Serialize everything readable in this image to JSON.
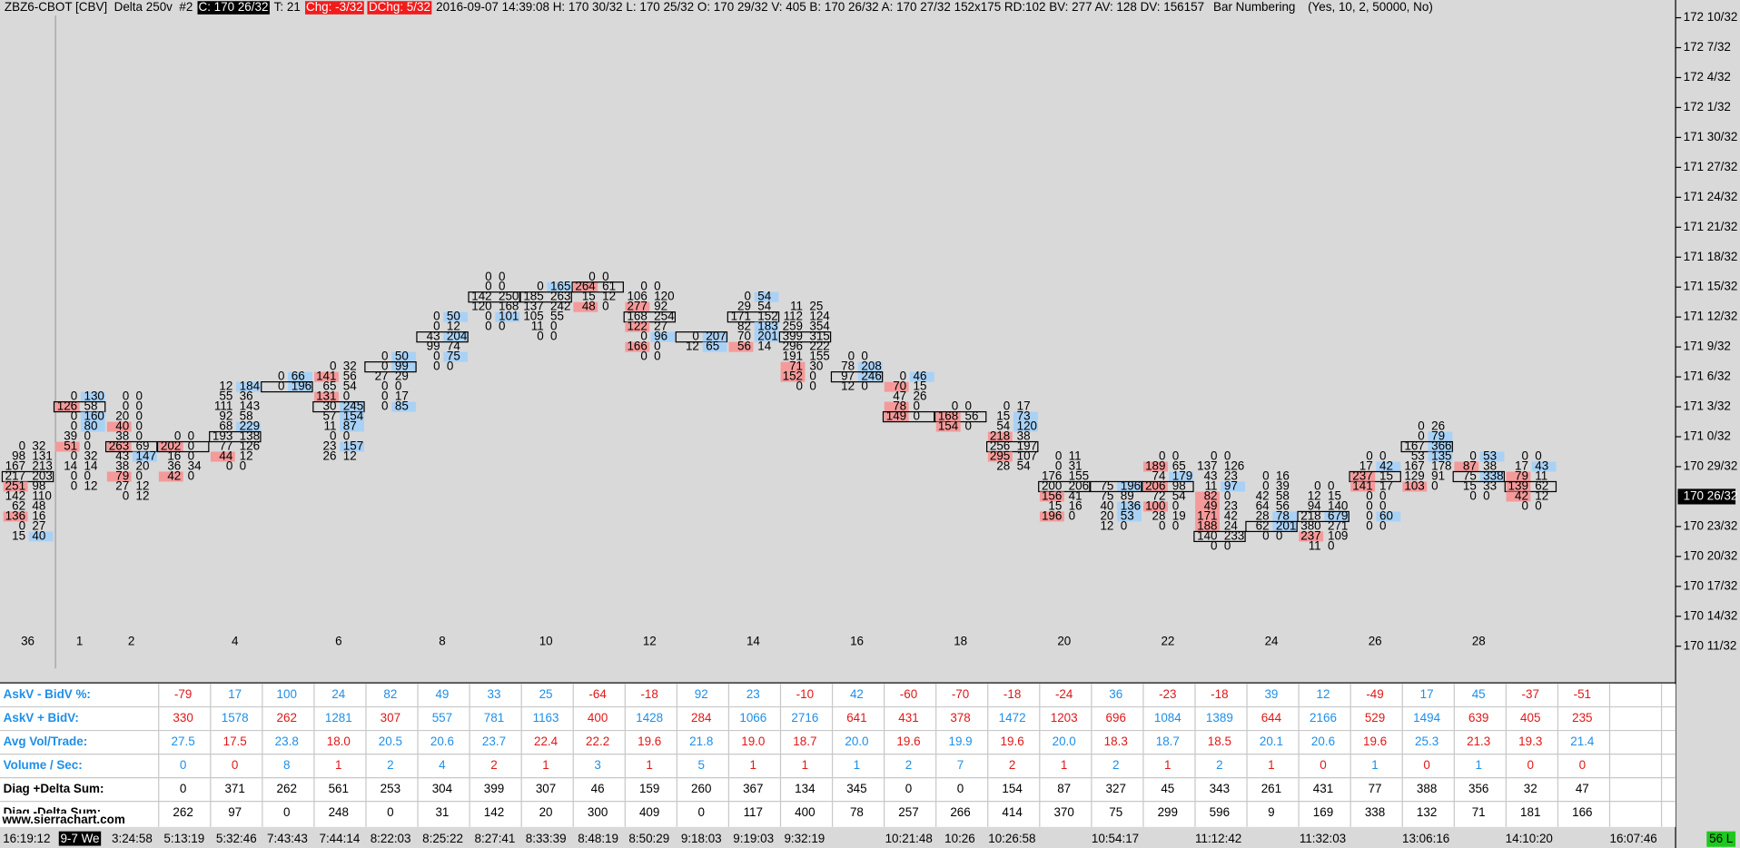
{
  "header": {
    "symbol": "ZBZ6-CBOT [CBV]  Delta 250v  #2",
    "close": "C: 170 26/32",
    "trades": "T: 21",
    "change": "Chg: -3/32",
    "dchange": "DChg: 5/32",
    "info": "2016-09-07 14:39:08 H: 170 30/32 L: 170 25/32 O: 170 29/32 V: 405 B: 170 26/32 A: 170 27/32 152x175 RD:102 BV: 277 AV: 128 DV: 156157",
    "study": "Bar Numbering",
    "study_params": "(Yes, 10, 2, 50000, No)"
  },
  "price_axis": {
    "top_32nds": 5514,
    "labels": [
      "172 10/32",
      "172 7/32",
      "172 4/32",
      "172 1/32",
      "171 30/32",
      "171 27/32",
      "171 24/32",
      "171 21/32",
      "171 18/32",
      "171 15/32",
      "171 12/32",
      "171 9/32",
      "171 6/32",
      "171 3/32",
      "171 0/32",
      "170 29/32",
      "170 23/32",
      "170 20/32",
      "170 17/32",
      "170 14/32",
      "170 11/32"
    ],
    "current": "170 26/32"
  },
  "footprint": [
    {
      "high": 5471,
      "bar_number": "36",
      "cells": [
        [
          "0",
          "32"
        ],
        [
          "98",
          "131"
        ],
        [
          "167",
          "213"
        ],
        [
          "217",
          "203"
        ],
        [
          "251",
          "98"
        ],
        [
          "142",
          "110"
        ],
        [
          "62",
          "48"
        ],
        [
          "136",
          "16"
        ],
        [
          "0",
          "27"
        ],
        [
          "15",
          "40"
        ]
      ]
    },
    {
      "high": 5476,
      "bar_number": "1",
      "cells": [
        [
          "0",
          "130"
        ],
        [
          "126",
          "58"
        ],
        [
          "0",
          "160"
        ],
        [
          "0",
          "80"
        ],
        [
          "39",
          "0"
        ],
        [
          "51",
          "0"
        ],
        [
          "0",
          "32"
        ],
        [
          "14",
          "14"
        ],
        [
          "0",
          "0"
        ],
        [
          "0",
          "12"
        ]
      ]
    },
    {
      "high": 5476,
      "bar_number": "2",
      "cells": [
        [
          "0",
          "0"
        ],
        [
          "0",
          "0"
        ],
        [
          "20",
          "0"
        ],
        [
          "40",
          "0"
        ],
        [
          "38",
          "0"
        ],
        [
          "263",
          "69"
        ],
        [
          "43",
          "147"
        ],
        [
          "38",
          "20"
        ],
        [
          "79",
          "0"
        ],
        [
          "27",
          "12"
        ],
        [
          "0",
          "12"
        ]
      ]
    },
    {
      "high": 5472,
      "cells": [
        [
          "0",
          "0"
        ],
        [
          "202",
          "0"
        ],
        [
          "16",
          "0"
        ],
        [
          "36",
          "34"
        ],
        [
          "42",
          "0"
        ]
      ]
    },
    {
      "high": 5477,
      "bar_number": "4",
      "cells": [
        [
          "12",
          "184"
        ],
        [
          "55",
          "36"
        ],
        [
          "111",
          "143"
        ],
        [
          "92",
          "58"
        ],
        [
          "68",
          "229"
        ],
        [
          "193",
          "138"
        ],
        [
          "77",
          "126"
        ],
        [
          "44",
          "12"
        ],
        [
          "0",
          "0"
        ]
      ]
    },
    {
      "high": 5478,
      "cells": [
        [
          "0",
          "66"
        ],
        [
          "0",
          "196"
        ]
      ]
    },
    {
      "high": 5479,
      "bar_number": "6",
      "cells": [
        [
          "0",
          "32"
        ],
        [
          "141",
          "56"
        ],
        [
          "65",
          "54"
        ],
        [
          "131",
          "0"
        ],
        [
          "30",
          "245"
        ],
        [
          "57",
          "154"
        ],
        [
          "11",
          "87"
        ],
        [
          "0",
          "0"
        ],
        [
          "23",
          "157"
        ],
        [
          "26",
          "12"
        ]
      ]
    },
    {
      "high": 5480,
      "cells": [
        [
          "0",
          "50"
        ],
        [
          "0",
          "99"
        ],
        [
          "27",
          "29"
        ],
        [
          "0",
          "0"
        ],
        [
          "0",
          "17"
        ],
        [
          "0",
          "85"
        ]
      ]
    },
    {
      "high": 5484,
      "bar_number": "8",
      "cells": [
        [
          "0",
          "50"
        ],
        [
          "0",
          "12"
        ],
        [
          "43",
          "204"
        ],
        [
          "99",
          "74"
        ],
        [
          "0",
          "75"
        ],
        [
          "0",
          "0"
        ]
      ]
    },
    {
      "high": 5488,
      "cells": [
        [
          "0",
          "0"
        ],
        [
          "0",
          "0"
        ],
        [
          "142",
          "250"
        ],
        [
          "120",
          "168"
        ],
        [
          "0",
          "101"
        ],
        [
          "0",
          "0"
        ]
      ]
    },
    {
      "high": 5487,
      "bar_number": "10",
      "cells": [
        [
          "0",
          "165"
        ],
        [
          "185",
          "263"
        ],
        [
          "137",
          "242"
        ],
        [
          "105",
          "55"
        ],
        [
          "11",
          "0"
        ],
        [
          "0",
          "0"
        ]
      ]
    },
    {
      "high": 5488,
      "cells": [
        [
          "0",
          "0"
        ],
        [
          "264",
          "61"
        ],
        [
          "15",
          "12"
        ],
        [
          "48",
          "0"
        ]
      ]
    },
    {
      "high": 5487,
      "bar_number": "12",
      "cells": [
        [
          "0",
          "0"
        ],
        [
          "106",
          "120"
        ],
        [
          "277",
          "92"
        ],
        [
          "168",
          "254"
        ],
        [
          "122",
          "27"
        ],
        [
          "0",
          "96"
        ],
        [
          "166",
          "0"
        ],
        [
          "0",
          "0"
        ]
      ]
    },
    {
      "high": 5482,
      "cells": [
        [
          "0",
          "207"
        ],
        [
          "12",
          "65"
        ]
      ]
    },
    {
      "high": 5486,
      "bar_number": "14",
      "cells": [
        [
          "0",
          "54"
        ],
        [
          "29",
          "54"
        ],
        [
          "171",
          "152"
        ],
        [
          "82",
          "183"
        ],
        [
          "70",
          "201"
        ],
        [
          "56",
          "14"
        ]
      ]
    },
    {
      "high": 5485,
      "cells": [
        [
          "11",
          "25"
        ],
        [
          "112",
          "124"
        ],
        [
          "259",
          "354"
        ],
        [
          "399",
          "315"
        ],
        [
          "296",
          "222"
        ],
        [
          "191",
          "155"
        ],
        [
          "71",
          "30"
        ],
        [
          "152",
          "0"
        ],
        [
          "0",
          "0"
        ]
      ]
    },
    {
      "high": 5480,
      "bar_number": "16",
      "cells": [
        [
          "0",
          "0"
        ],
        [
          "78",
          "208"
        ],
        [
          "97",
          "246"
        ],
        [
          "12",
          "0"
        ]
      ]
    },
    {
      "high": 5478,
      "cells": [
        [
          "0",
          "46"
        ],
        [
          "70",
          "15"
        ],
        [
          "47",
          "26"
        ],
        [
          "78",
          "0"
        ],
        [
          "149",
          "0"
        ]
      ]
    },
    {
      "high": 5475,
      "bar_number": "18",
      "cells": [
        [
          "0",
          "0"
        ],
        [
          "168",
          "56"
        ],
        [
          "154",
          "0"
        ]
      ]
    },
    {
      "high": 5475,
      "cells": [
        [
          "0",
          "17"
        ],
        [
          "15",
          "73"
        ],
        [
          "54",
          "120"
        ],
        [
          "218",
          "38"
        ],
        [
          "256",
          "197"
        ],
        [
          "295",
          "107"
        ],
        [
          "28",
          "54"
        ]
      ]
    },
    {
      "high": 5470,
      "bar_number": "20",
      "cells": [
        [
          "0",
          "11"
        ],
        [
          "0",
          "31"
        ],
        [
          "176",
          "155"
        ],
        [
          "200",
          "206"
        ],
        [
          "156",
          "41"
        ],
        [
          "15",
          "16"
        ],
        [
          "196",
          "0"
        ]
      ]
    },
    {
      "high": 5467,
      "cells": [
        [
          "75",
          "196"
        ],
        [
          "75",
          "89"
        ],
        [
          "40",
          "136"
        ],
        [
          "20",
          "53"
        ],
        [
          "12",
          "0"
        ]
      ]
    },
    {
      "high": 5470,
      "bar_number": "22",
      "cells": [
        [
          "0",
          "0"
        ],
        [
          "189",
          "65"
        ],
        [
          "74",
          "179"
        ],
        [
          "206",
          "98"
        ],
        [
          "72",
          "54"
        ],
        [
          "100",
          "0"
        ],
        [
          "28",
          "19"
        ],
        [
          "0",
          "0"
        ]
      ]
    },
    {
      "high": 5470,
      "cells": [
        [
          "0",
          "0"
        ],
        [
          "137",
          "126"
        ],
        [
          "43",
          "23"
        ],
        [
          "11",
          "97"
        ],
        [
          "82",
          "0"
        ],
        [
          "49",
          "23"
        ],
        [
          "171",
          "42"
        ],
        [
          "188",
          "24"
        ],
        [
          "140",
          "233"
        ],
        [
          "0",
          "0"
        ]
      ]
    },
    {
      "high": 5468,
      "bar_number": "24",
      "cells": [
        [
          "0",
          "16"
        ],
        [
          "0",
          "39"
        ],
        [
          "42",
          "58"
        ],
        [
          "64",
          "56"
        ],
        [
          "28",
          "78"
        ],
        [
          "62",
          "201"
        ],
        [
          "0",
          "0"
        ]
      ]
    },
    {
      "high": 5467,
      "cells": [
        [
          "0",
          "0"
        ],
        [
          "12",
          "15"
        ],
        [
          "94",
          "140"
        ],
        [
          "218",
          "679"
        ],
        [
          "380",
          "271"
        ],
        [
          "237",
          "109"
        ],
        [
          "11",
          "0"
        ]
      ]
    },
    {
      "high": 5470,
      "bar_number": "26",
      "cells": [
        [
          "0",
          "0"
        ],
        [
          "17",
          "42"
        ],
        [
          "237",
          "15"
        ],
        [
          "141",
          "17"
        ],
        [
          "0",
          "0"
        ],
        [
          "0",
          "0"
        ],
        [
          "0",
          "60"
        ],
        [
          "0",
          "0"
        ]
      ]
    },
    {
      "high": 5473,
      "cells": [
        [
          "0",
          "26"
        ],
        [
          "0",
          "79"
        ],
        [
          "167",
          "366"
        ],
        [
          "53",
          "135"
        ],
        [
          "167",
          "178"
        ],
        [
          "129",
          "91"
        ],
        [
          "103",
          "0"
        ]
      ]
    },
    {
      "high": 5470,
      "bar_number": "28",
      "cells": [
        [
          "0",
          "53"
        ],
        [
          "87",
          "38"
        ],
        [
          "75",
          "338"
        ],
        [
          "15",
          "33"
        ],
        [
          "0",
          "0"
        ]
      ]
    },
    {
      "high": 5470,
      "cells": [
        [
          "0",
          "0"
        ],
        [
          "17",
          "43"
        ],
        [
          "79",
          "11"
        ],
        [
          "139",
          "62"
        ],
        [
          "42",
          "12"
        ],
        [
          "0",
          "0"
        ]
      ]
    }
  ],
  "palette": {
    "b": "#1f8fe8",
    "r": "#e01818",
    "k": "#000000"
  },
  "table": {
    "rows": [
      {
        "label": "AskV - BidV %:",
        "label_color": "b",
        "colors": "rbbbbbbbrrbbrbrrrrbrrbbrbbrr",
        "values": [
          "-79",
          "17",
          "100",
          "24",
          "82",
          "49",
          "33",
          "25",
          "-64",
          "-18",
          "92",
          "23",
          "-10",
          "42",
          "-60",
          "-70",
          "-18",
          "-24",
          "36",
          "-23",
          "-18",
          "39",
          "12",
          "-49",
          "17",
          "45",
          "-37",
          "-51"
        ]
      },
      {
        "label": "AskV + BidV:",
        "label_color": "b",
        "colors": "rbrbrbbbrbrbbrrrbrrbbrbrbrrr",
        "values": [
          "330",
          "1578",
          "262",
          "1281",
          "307",
          "557",
          "781",
          "1163",
          "400",
          "1428",
          "284",
          "1066",
          "2716",
          "641",
          "431",
          "378",
          "1472",
          "1203",
          "696",
          "1084",
          "1389",
          "644",
          "2166",
          "529",
          "1494",
          "639",
          "405",
          "235"
        ]
      },
      {
        "label": "Avg Vol/Trade:",
        "label_color": "b",
        "colors": "brbrbbbrrrbrrbrbrbrbrbbrbrrb",
        "values": [
          "27.5",
          "17.5",
          "23.8",
          "18.0",
          "20.5",
          "20.6",
          "23.7",
          "22.4",
          "22.2",
          "19.6",
          "21.8",
          "19.0",
          "18.7",
          "20.0",
          "19.6",
          "19.9",
          "19.6",
          "20.0",
          "18.3",
          "18.7",
          "18.5",
          "20.1",
          "20.6",
          "19.6",
          "25.3",
          "21.3",
          "19.3",
          "21.4"
        ]
      },
      {
        "label": "Volume / Sec:",
        "label_color": "b",
        "colors": "brbrbbrrbrbrrbbbrrbrbrrbrbrr",
        "values": [
          "0",
          "0",
          "8",
          "1",
          "2",
          "4",
          "2",
          "1",
          "3",
          "1",
          "5",
          "1",
          "1",
          "1",
          "2",
          "7",
          "2",
          "1",
          "2",
          "1",
          "2",
          "1",
          "0",
          "1",
          "0",
          "1",
          "0",
          "0"
        ]
      },
      {
        "label": "Diag +Delta Sum:",
        "label_color": "k",
        "colors": "kkkkkkkkkkkkkkkkkkkkkkkkkkkk",
        "values": [
          "0",
          "371",
          "262",
          "561",
          "253",
          "304",
          "399",
          "307",
          "46",
          "159",
          "260",
          "367",
          "134",
          "345",
          "0",
          "0",
          "154",
          "87",
          "327",
          "45",
          "343",
          "261",
          "431",
          "77",
          "388",
          "356",
          "32",
          "47"
        ]
      },
      {
        "label": "Diag -Delta Sum:",
        "label_color": "k",
        "colors": "kkkkkkkkkkkkkkkkkkkkkkkkkkkk",
        "values": [
          "262",
          "97",
          "0",
          "248",
          "0",
          "31",
          "142",
          "20",
          "300",
          "409",
          "0",
          "117",
          "400",
          "78",
          "257",
          "266",
          "414",
          "370",
          "75",
          "299",
          "596",
          "9",
          "169",
          "338",
          "132",
          "71",
          "181",
          "166"
        ]
      }
    ]
  },
  "time_axis": {
    "labels": [
      "16:19:12",
      "9-7 We",
      "3:24:58",
      "5:13:19",
      "5:32:46",
      "7:43:43",
      "7:44:14",
      "8:22:03",
      "8:25:22",
      "8:27:41",
      "8:33:39",
      "8:48:19",
      "8:50:29",
      "9:18:03",
      "9:19:03",
      "9:32:19",
      "10:21:48",
      "10:26",
      "10:26:58",
      "10:54:17",
      "11:12:42",
      "11:32:03",
      "13:06:16",
      "14:10:20",
      "16:07:46"
    ]
  },
  "watermark": "www.sierrachart.com",
  "status": "56 L"
}
